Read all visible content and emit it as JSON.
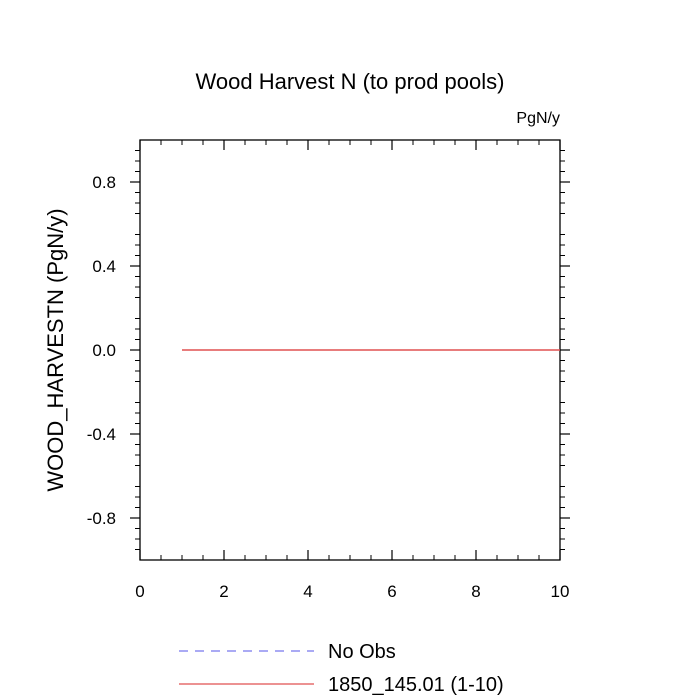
{
  "chart_data": {
    "type": "line",
    "title": "Wood Harvest N (to prod pools)",
    "units": "PgN/y",
    "xlabel": "",
    "ylabel": "WOOD_HARVESTN  (PgN/y)",
    "xlim": [
      0,
      10
    ],
    "ylim": [
      -1,
      1
    ],
    "xticks": [
      0,
      2,
      4,
      6,
      8,
      10
    ],
    "xtick_labels": [
      "0",
      "2",
      "4",
      "6",
      "8",
      "10"
    ],
    "yticks": [
      -0.8,
      -0.4,
      0.0,
      0.4,
      0.8
    ],
    "ytick_labels": [
      "-0.8",
      "-0.4",
      "0.0",
      "0.4",
      "0.8"
    ],
    "grid": false,
    "legend_position": "bottom",
    "series": [
      {
        "name": "No Obs",
        "color": "#7777ee",
        "dash": "dashed",
        "x": [],
        "y": []
      },
      {
        "name": "1850_145.01 (1-10)",
        "color": "#e05050",
        "dash": "solid",
        "x": [
          1,
          2,
          3,
          4,
          5,
          6,
          7,
          8,
          9,
          10
        ],
        "y": [
          0,
          0,
          0,
          0,
          0,
          0,
          0,
          0,
          0,
          0
        ]
      }
    ]
  }
}
